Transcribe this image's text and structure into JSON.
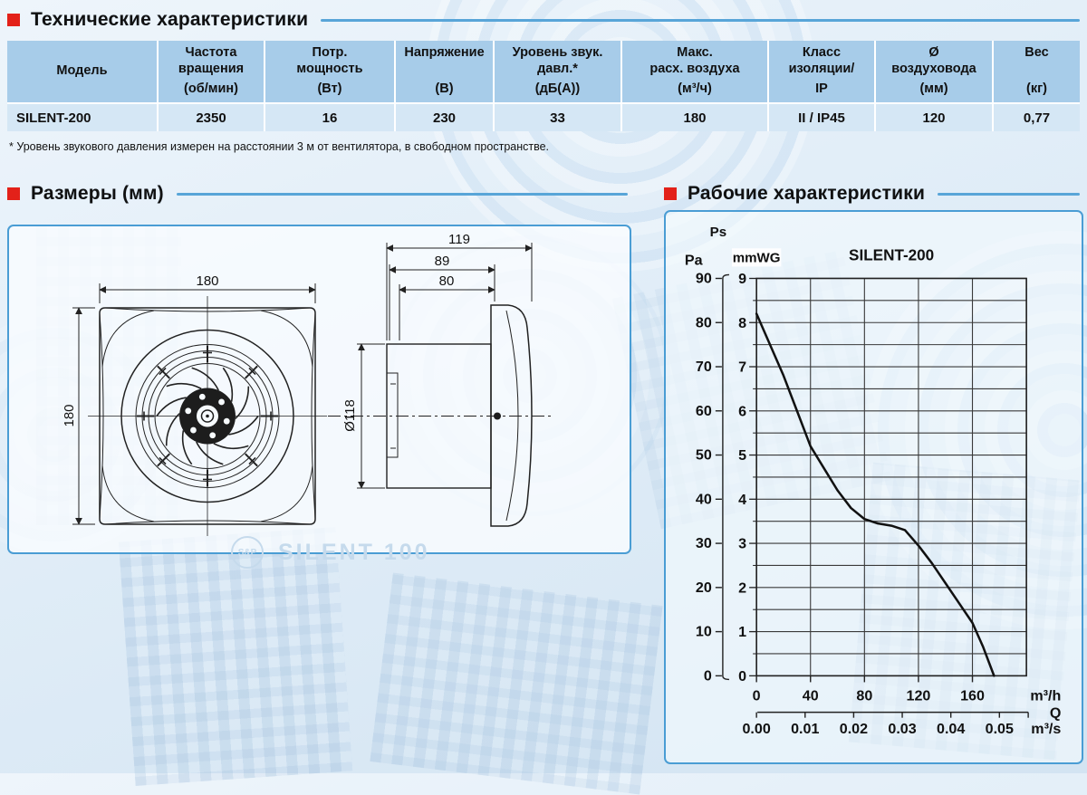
{
  "header": {
    "tech_title": "Технические характеристики",
    "dims_title": "Размеры (мм)",
    "perf_title": "Рабочие характеристики"
  },
  "colors": {
    "accent_red": "#e32119",
    "divider_blue": "#58a5d8",
    "panel_border": "#4a9dd4",
    "table_header_bg": "#a7cce9",
    "table_row_bg": "#d5e7f5",
    "watermark_blue": "#c5daec",
    "curve_black": "#111111"
  },
  "table": {
    "columns": [
      {
        "lines": [
          "Модель"
        ],
        "unit": ""
      },
      {
        "lines": [
          "Частота",
          "вращения"
        ],
        "unit": "(об/мин)"
      },
      {
        "lines": [
          "Потр.",
          "мощность"
        ],
        "unit": "(Вт)"
      },
      {
        "lines": [
          "Напряжение"
        ],
        "unit": "(В)"
      },
      {
        "lines": [
          "Уровень звук.",
          "давл.*"
        ],
        "unit": "(дБ(А))"
      },
      {
        "lines": [
          "Макс.",
          "расх. воздуха"
        ],
        "unit": "(м³/ч)"
      },
      {
        "lines": [
          "Класс",
          "изоляции/"
        ],
        "unit": "IP"
      },
      {
        "lines": [
          "Ø",
          "воздуховода"
        ],
        "unit": "(мм)"
      },
      {
        "lines": [
          "Вес"
        ],
        "unit": "(кг)"
      }
    ],
    "rows": [
      [
        "SILENT-200",
        "2350",
        "16",
        "230",
        "33",
        "180",
        "II / IP45",
        "120",
        "0,77"
      ]
    ]
  },
  "footnote": "* Уровень звукового давления измерен на расстоянии 3 м от вентилятора, в свободном пространстве.",
  "drawing": {
    "front": {
      "width": "180",
      "height": "180"
    },
    "side": {
      "total_depth": "119",
      "mid_depth": "89",
      "inner_depth": "80",
      "duct_diameter": "Ø118"
    },
    "watermark": {
      "logo": "S&P",
      "text": "SILENT 100"
    }
  },
  "chart_data": {
    "type": "line",
    "title": "SILENT-200",
    "y_label": "Ps",
    "y_primary": {
      "unit": "Pa",
      "ticks": [
        90,
        80,
        70,
        60,
        50,
        40,
        30,
        20,
        10,
        0
      ],
      "range": [
        0,
        90
      ]
    },
    "y_secondary": {
      "unit": "mmWG",
      "ticks": [
        9,
        8,
        7,
        6,
        5,
        4,
        3,
        2,
        1,
        0
      ],
      "range": [
        0,
        9
      ],
      "minor_step": 0.5
    },
    "x_primary": {
      "unit": "m³/h",
      "label": "Q",
      "ticks": [
        0,
        40,
        80,
        120,
        160
      ],
      "range": [
        0,
        200
      ]
    },
    "x_secondary": {
      "unit": "m³/s",
      "ticks": [
        "0.00",
        "0.01",
        "0.02",
        "0.03",
        "0.04",
        "0.05"
      ],
      "range": [
        0,
        0.0556
      ]
    },
    "grid": "on",
    "legend": "none",
    "series": [
      {
        "name": "SILENT-200",
        "points_q_m3h_vs_ps_pa": [
          [
            0,
            82
          ],
          [
            10,
            75
          ],
          [
            20,
            68
          ],
          [
            30,
            60
          ],
          [
            40,
            52
          ],
          [
            50,
            47
          ],
          [
            60,
            42
          ],
          [
            70,
            38
          ],
          [
            80,
            35.5
          ],
          [
            90,
            34.5
          ],
          [
            100,
            34
          ],
          [
            110,
            33
          ],
          [
            120,
            29.5
          ],
          [
            130,
            25.5
          ],
          [
            140,
            21
          ],
          [
            150,
            16.5
          ],
          [
            160,
            12
          ],
          [
            168,
            6.5
          ],
          [
            176,
            0
          ]
        ]
      }
    ]
  }
}
